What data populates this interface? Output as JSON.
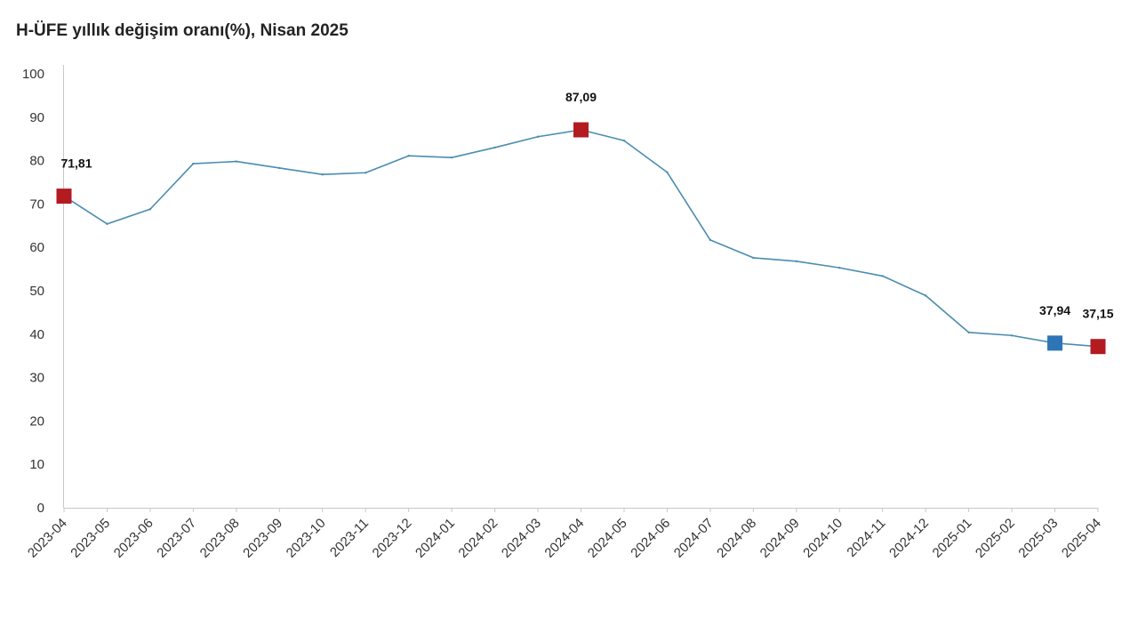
{
  "chart_data": {
    "type": "line",
    "title": "H-ÜFE yıllık değişim oranı(%), Nisan 2025",
    "xlabel": "",
    "ylabel": "",
    "ylim": [
      0,
      100
    ],
    "yticks": [
      0,
      10,
      20,
      30,
      40,
      50,
      60,
      70,
      80,
      90,
      100
    ],
    "grid": false,
    "categories": [
      "2023-04",
      "2023-05",
      "2023-06",
      "2023-07",
      "2023-08",
      "2023-09",
      "2023-10",
      "2023-11",
      "2023-12",
      "2024-01",
      "2024-02",
      "2024-03",
      "2024-04",
      "2024-05",
      "2024-06",
      "2024-07",
      "2024-08",
      "2024-09",
      "2024-10",
      "2024-11",
      "2024-12",
      "2025-01",
      "2025-02",
      "2025-03",
      "2025-04"
    ],
    "series": [
      {
        "values": [
          71.81,
          65.4,
          68.8,
          79.3,
          79.8,
          78.3,
          76.8,
          77.2,
          81.1,
          80.7,
          83.0,
          85.5,
          87.09,
          84.6,
          77.3,
          61.7,
          57.6,
          56.8,
          55.3,
          53.4,
          48.9,
          40.4,
          39.7,
          37.94,
          37.15
        ],
        "color": "#4a8db0"
      }
    ],
    "highlights": [
      {
        "index": 0,
        "label": "71,81",
        "color": "#b31b21"
      },
      {
        "index": 12,
        "label": "87,09",
        "color": "#b31b21"
      },
      {
        "index": 23,
        "label": "37,94",
        "color": "#2e75b6"
      },
      {
        "index": 24,
        "label": "37,15",
        "color": "#b31b21"
      }
    ],
    "axis_color": "#c8c8c8"
  }
}
